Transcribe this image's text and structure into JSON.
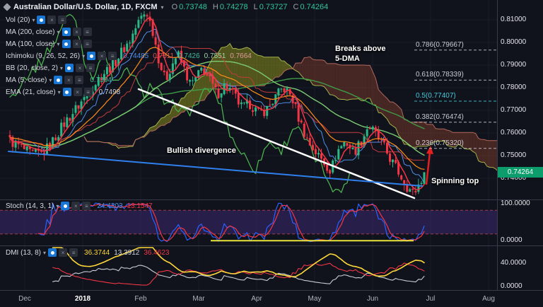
{
  "header": {
    "symbol": "Australian Dollar/U.S. Dollar, 1D, FXCM",
    "ohlc": [
      {
        "k": "O",
        "v": "0.73748"
      },
      {
        "k": "H",
        "v": "0.74278"
      },
      {
        "k": "L",
        "v": "0.73727"
      },
      {
        "k": "C",
        "v": "0.74264"
      }
    ]
  },
  "indicators": [
    {
      "label": "Vol (20)",
      "values": [],
      "value_colors": []
    },
    {
      "label": "MA (200, close)",
      "values": [],
      "value_colors": []
    },
    {
      "label": "MA (100, close)",
      "values": [],
      "value_colors": []
    },
    {
      "label": "Ichimoku (9, 26, 52, 26)",
      "values": [
        "0.74485",
        "0.7511",
        "0.7426",
        "0.7551",
        "0.7664"
      ],
      "value_colors": [
        "#4f8fe8",
        "#e05252",
        "#3cbc98",
        "#9fd6a5",
        "#e09a9a"
      ]
    },
    {
      "label": "BB (20, close, 2)",
      "values": [],
      "value_colors": []
    },
    {
      "label": "MA (5, close)",
      "values": [
        "0.7394"
      ],
      "value_colors": [
        "#3cbc98"
      ]
    },
    {
      "label": "EMA (21, close)",
      "values": [
        "0.7498"
      ],
      "value_colors": [
        "#d1d4dc"
      ]
    }
  ],
  "annotations": {
    "breaks_line1": "Breaks above",
    "breaks_line2": "5-DMA",
    "divergence": "Bullish divergence",
    "spinning": "Spinning top"
  },
  "fib_levels": [
    {
      "label": "0.786(0.79667)",
      "price": 0.79667,
      "color": "#c9ccd4"
    },
    {
      "label": "0.618(0.78339)",
      "price": 0.78339,
      "color": "#c9ccd4"
    },
    {
      "label": "0.5(0.77407)",
      "price": 0.77407,
      "color": "#45c9d8"
    },
    {
      "label": "0.382(0.76474)",
      "price": 0.76474,
      "color": "#c9ccd4"
    },
    {
      "label": "0.236(0.75320)",
      "price": 0.7532,
      "color": "#c9ccd4"
    }
  ],
  "price_axis": [
    "0.81000",
    "0.80000",
    "0.79000",
    "0.78000",
    "0.77000",
    "0.76000",
    "0.75000",
    "0.74000"
  ],
  "current_price": "0.74264",
  "time_axis": [
    "Dec",
    "2018",
    "Feb",
    "Mar",
    "Apr",
    "May",
    "Jun",
    "Jul",
    "Aug"
  ],
  "panels": {
    "stoch": {
      "label": "Stoch (14, 3, 1)",
      "values": [
        {
          "v": "24.4203",
          "color": "#4f8fe8"
        },
        {
          "v": "13.1547",
          "color": "#f23645"
        }
      ],
      "axis": [
        "100.0000",
        "0.0000"
      ]
    },
    "dmi": {
      "label": "DMI (13, 8)",
      "values": [
        {
          "v": "36.3744",
          "color": "#ffd83a"
        },
        {
          "v": "13.3912",
          "color": "#d1d4dc"
        },
        {
          "v": "36.4623",
          "color": "#f23645"
        }
      ],
      "axis": [
        "40.0000",
        "0.0000"
      ]
    }
  },
  "chart_data": {
    "type": "candlestick",
    "symbol": "AUD/USD",
    "timeframe": "1D",
    "x_range": [
      "Dec 2017",
      "Aug 2018"
    ],
    "y_range": [
      0.7306,
      0.8156
    ],
    "bars": 146,
    "last_bar": {
      "o": 0.73748,
      "h": 0.74278,
      "l": 0.73727,
      "c": 0.74264
    },
    "price_path": [
      [
        0,
        0.7565
      ],
      [
        0.02,
        0.7545
      ],
      [
        0.05,
        0.7505
      ],
      [
        0.08,
        0.751
      ],
      [
        0.1,
        0.7555
      ],
      [
        0.13,
        0.764
      ],
      [
        0.16,
        0.7708
      ],
      [
        0.19,
        0.778
      ],
      [
        0.22,
        0.7855
      ],
      [
        0.25,
        0.7905
      ],
      [
        0.27,
        0.796
      ],
      [
        0.29,
        0.801
      ],
      [
        0.305,
        0.807
      ],
      [
        0.32,
        0.812
      ],
      [
        0.33,
        0.8135
      ],
      [
        0.345,
        0.805
      ],
      [
        0.36,
        0.792
      ],
      [
        0.375,
        0.783
      ],
      [
        0.39,
        0.79
      ],
      [
        0.405,
        0.795
      ],
      [
        0.42,
        0.7885
      ],
      [
        0.435,
        0.7815
      ],
      [
        0.45,
        0.784
      ],
      [
        0.465,
        0.789
      ],
      [
        0.48,
        0.784
      ],
      [
        0.5,
        0.777
      ],
      [
        0.52,
        0.7815
      ],
      [
        0.54,
        0.777
      ],
      [
        0.56,
        0.771
      ],
      [
        0.58,
        0.773
      ],
      [
        0.6,
        0.7685
      ],
      [
        0.62,
        0.7705
      ],
      [
        0.64,
        0.7755
      ],
      [
        0.66,
        0.78
      ],
      [
        0.68,
        0.776
      ],
      [
        0.7,
        0.765
      ],
      [
        0.72,
        0.756
      ],
      [
        0.74,
        0.751
      ],
      [
        0.76,
        0.7465
      ],
      [
        0.775,
        0.7435
      ],
      [
        0.79,
        0.752
      ],
      [
        0.81,
        0.7565
      ],
      [
        0.83,
        0.7515
      ],
      [
        0.85,
        0.757
      ],
      [
        0.865,
        0.7635
      ],
      [
        0.88,
        0.76
      ],
      [
        0.9,
        0.7545
      ],
      [
        0.92,
        0.748
      ],
      [
        0.94,
        0.742
      ],
      [
        0.96,
        0.736
      ],
      [
        0.975,
        0.733
      ],
      [
        0.99,
        0.7385
      ],
      [
        1,
        0.74264
      ]
    ],
    "overlays": {
      "white_trendline": {
        "x1": 196,
        "y1": 126,
        "x2": 586,
        "y2": 280
      },
      "blue_trendline": {
        "x1": 12,
        "y1": 214,
        "x2": 597,
        "y2": 263
      },
      "red_arrow": {
        "x1": 603,
        "y1": 261,
        "x2": 609,
        "y2": 206
      },
      "stoch_yellow_line": {
        "x1": 298,
        "x2": 585,
        "value": 3
      }
    }
  },
  "colors": {
    "background": "#10131c",
    "grid": "#181d29",
    "separator": "#363c4a",
    "up": "#2bb886",
    "down": "#f23645",
    "ma5": "#f23645",
    "ema21": "#ff8c1a",
    "ma100": "#7ccb72",
    "ma200": "#3f9b46",
    "tenkan": "#4f8fe8",
    "kijun": "#c23b3b",
    "chikou": "#4caf50",
    "cloud_bull": "#8a8f1f",
    "cloud_bear": "#74392c",
    "senkou_a": "#a2b24a",
    "senkou_b": "#b2675a",
    "stoch_k": "#2962ff",
    "stoch_d": "#f23645",
    "stoch_band": "rgba(93,57,178,0.30)",
    "stoch_band_line": "#a03a4a",
    "drawn_yellow": "#e8e33b",
    "dmi_adx": "#ffd83a",
    "dmi_plus": "#c8ccd6",
    "dmi_minus": "#f23645",
    "trend_white": "#ffffff",
    "trend_blue": "#2f80ed",
    "arrow_red": "#e32020",
    "badge": "#0d9d6d"
  }
}
